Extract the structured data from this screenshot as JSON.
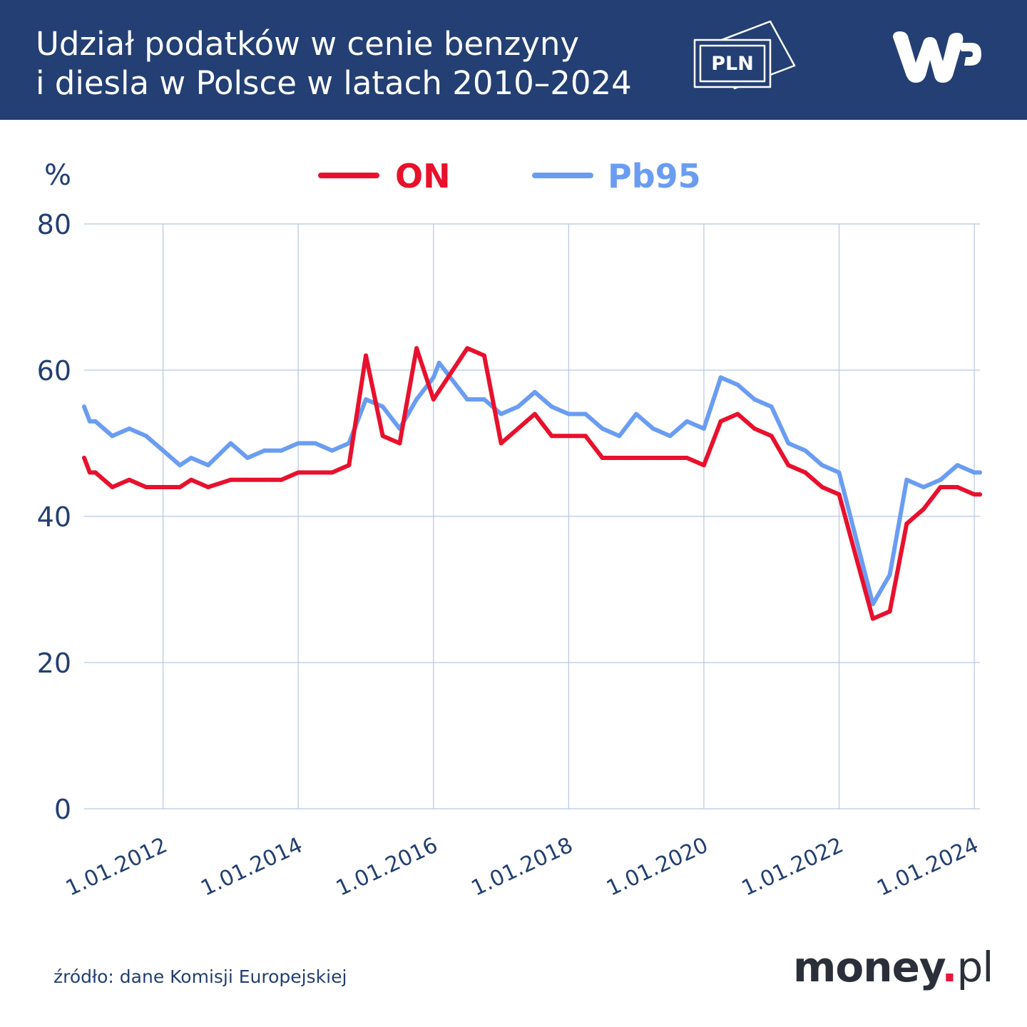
{
  "header": {
    "title_line1": "Udział podatków w cenie benzyny",
    "title_line2": "i diesla w Polsce w latach 2010–2024",
    "icon": "banknote-icon",
    "icon_text": "PLN",
    "logo": "wp-logo"
  },
  "chart_data": {
    "type": "line",
    "ylabel": "%",
    "ylim": [
      0,
      80
    ],
    "yticks": [
      0,
      20,
      40,
      60,
      80
    ],
    "xticks": [
      "1.01.2012",
      "1.01.2014",
      "1.01.2016",
      "1.01.2018",
      "1.01.2020",
      "1.01.2022",
      "1.01.2024"
    ],
    "x_range": [
      "2010-11-01",
      "2024-02-01"
    ],
    "grid": true,
    "legend_position": "top-center",
    "series": [
      {
        "name": "ON",
        "color": "#e8112d",
        "points": [
          [
            "2010-11-01",
            48
          ],
          [
            "2010-12-01",
            46
          ],
          [
            "2011-01-01",
            46
          ],
          [
            "2011-04-01",
            44
          ],
          [
            "2011-07-01",
            45
          ],
          [
            "2011-10-01",
            44
          ],
          [
            "2012-01-01",
            44
          ],
          [
            "2012-04-01",
            44
          ],
          [
            "2012-06-01",
            45
          ],
          [
            "2012-09-01",
            44
          ],
          [
            "2013-01-01",
            45
          ],
          [
            "2013-04-01",
            45
          ],
          [
            "2013-07-01",
            45
          ],
          [
            "2013-10-01",
            45
          ],
          [
            "2014-01-01",
            46
          ],
          [
            "2014-04-01",
            46
          ],
          [
            "2014-07-01",
            46
          ],
          [
            "2014-10-01",
            47
          ],
          [
            "2015-01-01",
            62
          ],
          [
            "2015-04-01",
            51
          ],
          [
            "2015-07-01",
            50
          ],
          [
            "2015-10-01",
            63
          ],
          [
            "2016-01-01",
            56
          ],
          [
            "2016-07-01",
            63
          ],
          [
            "2016-10-01",
            62
          ],
          [
            "2017-01-01",
            50
          ],
          [
            "2017-07-01",
            54
          ],
          [
            "2017-10-01",
            51
          ],
          [
            "2018-01-01",
            51
          ],
          [
            "2018-04-01",
            51
          ],
          [
            "2018-07-01",
            48
          ],
          [
            "2018-10-01",
            48
          ],
          [
            "2019-01-01",
            48
          ],
          [
            "2019-04-01",
            48
          ],
          [
            "2019-07-01",
            48
          ],
          [
            "2019-10-01",
            48
          ],
          [
            "2020-01-01",
            47
          ],
          [
            "2020-04-01",
            53
          ],
          [
            "2020-07-01",
            54
          ],
          [
            "2020-10-01",
            52
          ],
          [
            "2021-01-01",
            51
          ],
          [
            "2021-04-01",
            47
          ],
          [
            "2021-07-01",
            46
          ],
          [
            "2021-10-01",
            44
          ],
          [
            "2022-01-01",
            43
          ],
          [
            "2022-07-01",
            26
          ],
          [
            "2022-10-01",
            27
          ],
          [
            "2023-01-01",
            39
          ],
          [
            "2023-04-01",
            41
          ],
          [
            "2023-07-01",
            44
          ],
          [
            "2023-10-01",
            44
          ],
          [
            "2024-01-01",
            43
          ],
          [
            "2024-02-01",
            43
          ]
        ]
      },
      {
        "name": "Pb95",
        "color": "#6a9df2",
        "points": [
          [
            "2010-11-01",
            55
          ],
          [
            "2010-12-01",
            53
          ],
          [
            "2011-01-01",
            53
          ],
          [
            "2011-04-01",
            51
          ],
          [
            "2011-07-01",
            52
          ],
          [
            "2011-10-01",
            51
          ],
          [
            "2012-01-01",
            49
          ],
          [
            "2012-04-01",
            47
          ],
          [
            "2012-06-01",
            48
          ],
          [
            "2012-09-01",
            47
          ],
          [
            "2013-01-01",
            50
          ],
          [
            "2013-04-01",
            48
          ],
          [
            "2013-07-01",
            49
          ],
          [
            "2013-10-01",
            49
          ],
          [
            "2014-01-01",
            50
          ],
          [
            "2014-04-01",
            50
          ],
          [
            "2014-07-01",
            49
          ],
          [
            "2014-10-01",
            50
          ],
          [
            "2015-01-01",
            56
          ],
          [
            "2015-04-01",
            55
          ],
          [
            "2015-07-01",
            52
          ],
          [
            "2015-10-01",
            56
          ],
          [
            "2016-01-01",
            59
          ],
          [
            "2016-02-01",
            61
          ],
          [
            "2016-07-01",
            56
          ],
          [
            "2016-10-01",
            56
          ],
          [
            "2017-01-01",
            54
          ],
          [
            "2017-04-01",
            55
          ],
          [
            "2017-07-01",
            57
          ],
          [
            "2017-10-01",
            55
          ],
          [
            "2018-01-01",
            54
          ],
          [
            "2018-04-01",
            54
          ],
          [
            "2018-07-01",
            52
          ],
          [
            "2018-10-01",
            51
          ],
          [
            "2019-01-01",
            54
          ],
          [
            "2019-04-01",
            52
          ],
          [
            "2019-07-01",
            51
          ],
          [
            "2019-10-01",
            53
          ],
          [
            "2020-01-01",
            52
          ],
          [
            "2020-04-01",
            59
          ],
          [
            "2020-07-01",
            58
          ],
          [
            "2020-10-01",
            56
          ],
          [
            "2021-01-01",
            55
          ],
          [
            "2021-04-01",
            50
          ],
          [
            "2021-07-01",
            49
          ],
          [
            "2021-10-01",
            47
          ],
          [
            "2022-01-01",
            46
          ],
          [
            "2022-07-01",
            28
          ],
          [
            "2022-10-01",
            32
          ],
          [
            "2023-01-01",
            45
          ],
          [
            "2023-04-01",
            44
          ],
          [
            "2023-07-01",
            45
          ],
          [
            "2023-10-01",
            47
          ],
          [
            "2024-01-01",
            46
          ],
          [
            "2024-02-01",
            46
          ]
        ]
      }
    ]
  },
  "footer": {
    "source": "źródło: dane Komisji Europejskiej",
    "brand_main": "money",
    "brand_dot": ".",
    "brand_tld": "pl"
  }
}
